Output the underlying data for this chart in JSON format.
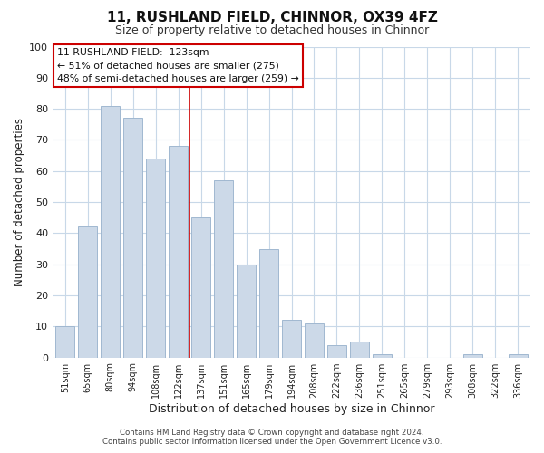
{
  "title": "11, RUSHLAND FIELD, CHINNOR, OX39 4FZ",
  "subtitle": "Size of property relative to detached houses in Chinnor",
  "xlabel": "Distribution of detached houses by size in Chinnor",
  "ylabel": "Number of detached properties",
  "footer_line1": "Contains HM Land Registry data © Crown copyright and database right 2024.",
  "footer_line2": "Contains public sector information licensed under the Open Government Licence v3.0.",
  "categories": [
    "51sqm",
    "65sqm",
    "80sqm",
    "94sqm",
    "108sqm",
    "122sqm",
    "137sqm",
    "151sqm",
    "165sqm",
    "179sqm",
    "194sqm",
    "208sqm",
    "222sqm",
    "236sqm",
    "251sqm",
    "265sqm",
    "279sqm",
    "293sqm",
    "308sqm",
    "322sqm",
    "336sqm"
  ],
  "values": [
    10,
    42,
    81,
    77,
    64,
    68,
    45,
    57,
    30,
    35,
    12,
    11,
    4,
    5,
    1,
    0,
    0,
    0,
    1,
    0,
    1
  ],
  "bar_color": "#ccd9e8",
  "bar_edge_color": "#a0b8d0",
  "highlight_bar_index": 5,
  "highlight_line_color": "#cc0000",
  "ylim": [
    0,
    100
  ],
  "annotation_text_line1": "11 RUSHLAND FIELD:  123sqm",
  "annotation_text_line2": "← 51% of detached houses are smaller (275)",
  "annotation_text_line3": "48% of semi-detached houses are larger (259) →",
  "annotation_box_color": "#ffffff",
  "annotation_border_color": "#cc0000",
  "grid_color": "#c8d8e8",
  "background_color": "#ffffff",
  "axes_bg_color": "#ffffff"
}
